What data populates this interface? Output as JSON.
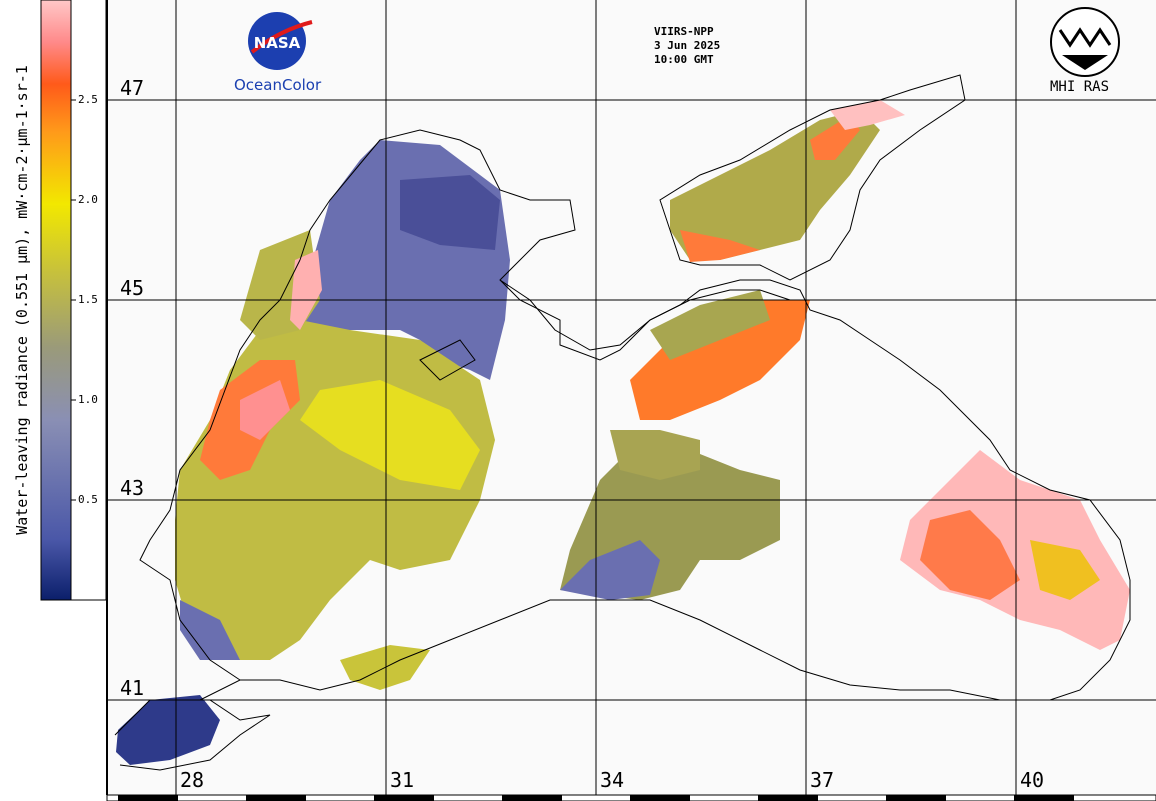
{
  "header": {
    "satellite": "VIIRS-NPP",
    "date": "3 Jun 2025",
    "time": "10:00 GMT"
  },
  "logos": {
    "left_name": "nasa-logo",
    "left_caption": "OceanColor",
    "left_badge_text": "NASA",
    "right_name": "mhi-logo",
    "right_caption": "MHI RAS"
  },
  "colorbar": {
    "label": "Water-leaving radiance (0.551 µm), mW·cm-2·µm-1·sr-1",
    "ticks": [
      "0.5",
      "1.0",
      "1.5",
      "2.0",
      "2.5"
    ],
    "colors": [
      "#0b1f6b",
      "#4a57a8",
      "#8a8fb4",
      "#9a9a7a",
      "#c8c23a",
      "#f2e800",
      "#ff9a1a",
      "#ff5a1a",
      "#ff8a8a",
      "#ffc8c8"
    ]
  },
  "grid": {
    "latitudes": [
      "47",
      "45",
      "43",
      "41"
    ],
    "longitudes": [
      "28",
      "31",
      "34",
      "37",
      "40"
    ]
  },
  "colors": {
    "land": "#fafafa",
    "coast": "#000000",
    "blue_water": "#6a6fb0",
    "yellow": "#c9c43a",
    "orange": "#ff6a2a",
    "pink": "#ffb0b0"
  }
}
